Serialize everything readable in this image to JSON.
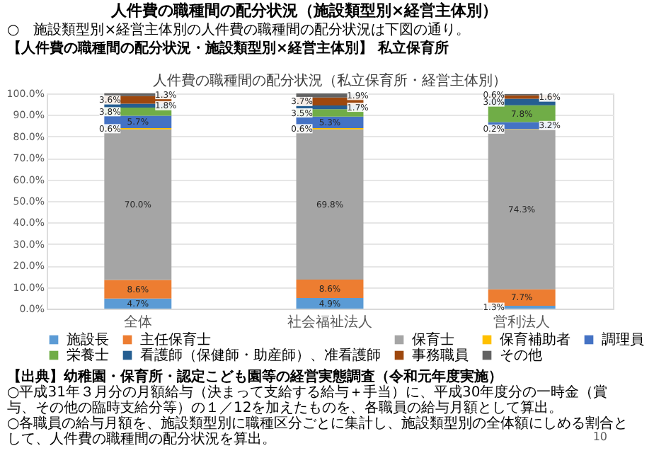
{
  "chart_data": {
    "type": "bar",
    "stacked": true,
    "title": "人件費の職種間の配分状況（私立保育所・経営主体別）",
    "categories": [
      "全体",
      "社会福祉法人",
      "営利法人"
    ],
    "series": [
      {
        "name": "施設長",
        "color": "#5b9bd5",
        "values": [
          4.7,
          4.9,
          1.3
        ],
        "value_labels": [
          "4.7%",
          "4.9%",
          "1.3%"
        ]
      },
      {
        "name": "主任保育士",
        "color": "#ed7d31",
        "values": [
          8.6,
          8.6,
          7.7
        ],
        "value_labels": [
          "8.6%",
          "8.6%",
          "7.7%"
        ]
      },
      {
        "name": "保育士",
        "color": "#a5a5a5",
        "values": [
          70.0,
          69.8,
          74.3
        ],
        "value_labels": [
          "70.0%",
          "69.8%",
          "74.3%"
        ]
      },
      {
        "name": "保育補助者",
        "color": "#ffc000",
        "values": [
          0.6,
          0.6,
          0.2
        ],
        "value_labels": [
          "0.6%",
          "0.6%",
          "0.2%"
        ]
      },
      {
        "name": "調理員",
        "color": "#4472c4",
        "values": [
          5.7,
          5.3,
          3.2
        ],
        "value_labels": [
          "5.7%",
          "5.3%",
          "3.2%"
        ]
      },
      {
        "name": "栄養士",
        "color": "#70ad47",
        "values": [
          3.8,
          3.5,
          7.8
        ],
        "value_labels": [
          "3.8%",
          "3.5%",
          "7.8%"
        ]
      },
      {
        "name": "看護師（保健師・助産師）、准看護師",
        "color": "#255e91",
        "values": [
          1.8,
          1.7,
          3.0
        ],
        "value_labels": [
          "1.8%",
          "1.7%",
          "3.0%"
        ]
      },
      {
        "name": "事務職員",
        "color": "#9e480e",
        "values": [
          3.6,
          3.7,
          1.6
        ],
        "value_labels": [
          "3.6%",
          "3.7%",
          "1.6%"
        ]
      },
      {
        "name": "その他",
        "color": "#636363",
        "values": [
          1.3,
          1.9,
          0.6
        ],
        "value_labels": [
          "1.3%",
          "1.9%",
          "0.6%"
        ]
      }
    ],
    "ylim": [
      0,
      100
    ],
    "yticks": [
      {
        "value": 0,
        "label": "0.0%"
      },
      {
        "value": 10,
        "label": "10.0%"
      },
      {
        "value": 20,
        "label": "20.0%"
      },
      {
        "value": 30,
        "label": "30.0%"
      },
      {
        "value": 40,
        "label": "40.0%"
      },
      {
        "value": 50,
        "label": "50.0%"
      },
      {
        "value": 60,
        "label": "60.0%"
      },
      {
        "value": 70,
        "label": "70.0%"
      },
      {
        "value": 80,
        "label": "80.0%"
      },
      {
        "value": 90,
        "label": "90.0%"
      },
      {
        "value": 100,
        "label": "100.0%"
      }
    ],
    "grid": "y",
    "legend": "bottom",
    "annotations": [
      "人件費の職種間の配分状況（施設類型別×経営主体別）",
      "○　施設類型別×経営主体別の人件費の職種間の配分状況は下図の通り。",
      "【人件費の職種間の配分状況・施設類型別×経営主体別】 私立保育所",
      "【出典】幼稚園・保育所・認定こども園等の経営実態調査（令和元年度実施）",
      "○平成31年３月分の月額給与（決まって支給する給与＋手当）に、平成30年度分の一時金（賞与、その他の臨時支給分等）の１／12を加えたものを、各職員の給与月額として算出。",
      "○各職員の給与月額を、施設類型別に職種区分ごとに集計し、施設類型別の全体額にしめる割合として、人件費の職種間の配分状況を算出。",
      "10"
    ]
  }
}
